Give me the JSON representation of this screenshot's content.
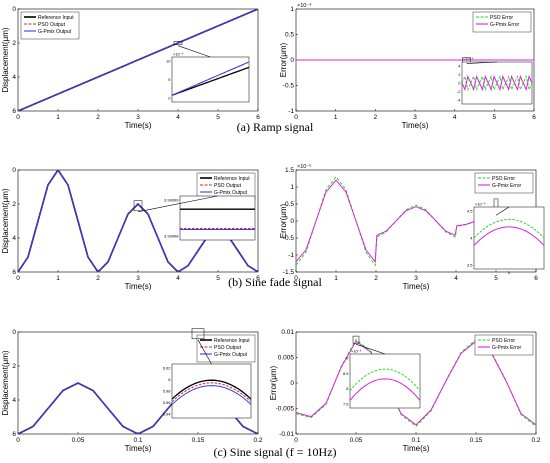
{
  "captions": {
    "a": "(a) Ramp signal",
    "b": "(b) Sine fade signal",
    "c": "(c) Sine signal (f = 10Hz)"
  },
  "colors": {
    "reference": "#000000",
    "pso": "#d62728",
    "gpmix": "#3b3bff",
    "pso_error": "#22dd22",
    "gpmix_error": "#dd22dd"
  },
  "chart_data": [
    {
      "id": "a-left",
      "type": "line",
      "xlabel": "Time(s)",
      "ylabel": "Displacement(μm)",
      "xlim": [
        0,
        6
      ],
      "ylim": [
        0,
        6
      ],
      "xticks": [
        "0",
        "1",
        "2",
        "3",
        "4",
        "5",
        "6"
      ],
      "yticks": [
        "0",
        "2",
        "4",
        "6"
      ],
      "legend": "top-left",
      "series": [
        {
          "name": "Reference Input",
          "color": "#000000",
          "style": "solid",
          "x": [
            0,
            6
          ],
          "y": [
            0,
            6
          ]
        },
        {
          "name": "PSO Output",
          "color": "#d62728",
          "style": "dashed",
          "x": [
            0,
            6
          ],
          "y": [
            0,
            6
          ]
        },
        {
          "name": "G-Pmix Output",
          "color": "#3b3bff",
          "style": "solid",
          "x": [
            0,
            6
          ],
          "y": [
            0,
            6
          ]
        }
      ],
      "inset": {
        "exponent": "×10⁻³",
        "yticks": [
          "10",
          "5",
          "0"
        ],
        "xticks": []
      }
    },
    {
      "id": "a-right",
      "type": "line",
      "xlabel": "Time(s)",
      "ylabel": "Error(μm)",
      "xlim": [
        0,
        6
      ],
      "ylim": [
        -1,
        1
      ],
      "exponent": "×10⁻⁴",
      "xticks": [
        "0",
        "1",
        "2",
        "3",
        "4",
        "5",
        "6"
      ],
      "yticks": [
        "1",
        "0.5",
        "0",
        "-0.5",
        "-1"
      ],
      "legend": "top-right",
      "series": [
        {
          "name": "PSO Error",
          "color": "#22dd22",
          "style": "dashed",
          "x": [
            0,
            6
          ],
          "y": [
            0,
            0
          ]
        },
        {
          "name": "G-Pmix Error",
          "color": "#dd22dd",
          "style": "solid",
          "x": [
            0,
            6
          ],
          "y": [
            0,
            0
          ]
        }
      ],
      "inset": {
        "exponent": "×10⁻⁶",
        "yticks": [
          "4",
          "2",
          "0",
          "-2",
          "-4"
        ],
        "xticks": []
      }
    },
    {
      "id": "b-left",
      "type": "line",
      "xlabel": "Time(s)",
      "ylabel": "Displacement(μm)",
      "xlim": [
        0,
        6
      ],
      "ylim": [
        0,
        6
      ],
      "xticks": [
        "0",
        "1",
        "2",
        "3",
        "4",
        "5",
        "6"
      ],
      "yticks": [
        "0",
        "2",
        "4",
        "6"
      ],
      "legend": "top-right",
      "series": [
        {
          "name": "Reference Input",
          "color": "#000000",
          "style": "solid",
          "x": [
            0,
            0.25,
            0.5,
            0.75,
            1,
            1.25,
            1.5,
            1.75,
            2,
            2.25,
            2.5,
            2.75,
            3,
            3.25,
            3.5,
            3.75,
            4,
            4.25,
            4.5,
            4.75,
            5,
            5.25,
            5.5,
            5.75,
            6
          ],
          "y": [
            0,
            0.88,
            3,
            5.12,
            6,
            5.12,
            3,
            0.88,
            0,
            0.59,
            2,
            3.41,
            4,
            3.41,
            2,
            0.59,
            0,
            0.37,
            1.25,
            2.13,
            2.5,
            2.13,
            1.25,
            0.37,
            0
          ]
        },
        {
          "name": "PSO Output",
          "color": "#d62728",
          "style": "dashed",
          "x": [
            0,
            0.25,
            0.5,
            0.75,
            1,
            1.25,
            1.5,
            1.75,
            2,
            2.25,
            2.5,
            2.75,
            3,
            3.25,
            3.5,
            3.75,
            4,
            4.25,
            4.5,
            4.75,
            5,
            5.25,
            5.5,
            5.75,
            6
          ],
          "y": [
            0,
            0.88,
            3,
            5.12,
            6,
            5.12,
            3,
            0.88,
            0,
            0.59,
            2,
            3.41,
            4,
            3.41,
            2,
            0.59,
            0,
            0.37,
            1.25,
            2.13,
            2.5,
            2.13,
            1.25,
            0.37,
            0
          ]
        },
        {
          "name": "G-Pmix Output",
          "color": "#3b3bff",
          "style": "solid",
          "x": [
            0,
            0.25,
            0.5,
            0.75,
            1,
            1.25,
            1.5,
            1.75,
            2,
            2.25,
            2.5,
            2.75,
            3,
            3.25,
            3.5,
            3.75,
            4,
            4.25,
            4.5,
            4.75,
            5,
            5.25,
            5.5,
            5.75,
            6
          ],
          "y": [
            0,
            0.88,
            3,
            5.12,
            6,
            5.12,
            3,
            0.88,
            0,
            0.59,
            2,
            3.41,
            4,
            3.41,
            2,
            0.59,
            0,
            0.37,
            1.25,
            2.13,
            2.5,
            2.13,
            1.25,
            0.37,
            0
          ]
        }
      ],
      "inset": {
        "exponent": "",
        "yticks": [
          "3.99999",
          "3.99998"
        ],
        "xticks": []
      }
    },
    {
      "id": "b-right",
      "type": "line",
      "xlabel": "Time(s)",
      "ylabel": "Error(μm)",
      "xlim": [
        0,
        6
      ],
      "ylim": [
        -1.5,
        1.5
      ],
      "exponent": "×10⁻⁵",
      "xticks": [
        "0",
        "1",
        "2",
        "3",
        "4",
        "5",
        "6"
      ],
      "yticks": [
        "1.5",
        "1",
        "0.5",
        "0",
        "-0.5",
        "-1",
        "-1.5"
      ],
      "legend": "top-right",
      "series": [
        {
          "name": "PSO Error",
          "color": "#22dd22",
          "style": "dashed",
          "x": [
            0,
            0.25,
            0.5,
            0.75,
            1,
            1.25,
            1.5,
            1.75,
            1.98,
            2.02,
            2.25,
            2.5,
            2.75,
            3,
            3.25,
            3.5,
            3.75,
            3.98,
            4.02,
            4.25,
            4.5,
            4.75,
            5,
            5.25,
            5.5,
            5.75,
            6
          ],
          "y": [
            -1.3,
            -0.92,
            0,
            0.92,
            1.3,
            0.92,
            0,
            -0.92,
            -1.3,
            -0.47,
            -0.33,
            0,
            0.33,
            0.47,
            0.33,
            0,
            -0.33,
            -0.47,
            -0.16,
            -0.11,
            0,
            0.11,
            0.16,
            0.11,
            0,
            -0.11,
            -0.16
          ]
        },
        {
          "name": "G-Pmix Error",
          "color": "#dd22dd",
          "style": "solid",
          "x": [
            0,
            0.25,
            0.5,
            0.75,
            1,
            1.25,
            1.5,
            1.75,
            1.98,
            2.02,
            2.25,
            2.5,
            2.75,
            3,
            3.25,
            3.5,
            3.75,
            3.98,
            4.02,
            4.25,
            4.5,
            4.75,
            5,
            5.25,
            5.5,
            5.75,
            6
          ],
          "y": [
            -1.2,
            -0.85,
            0,
            0.85,
            1.2,
            0.85,
            0,
            -0.85,
            -1.2,
            -0.42,
            -0.3,
            0,
            0.3,
            0.42,
            0.3,
            0,
            -0.3,
            -0.42,
            -0.14,
            -0.1,
            0,
            0.1,
            0.14,
            0.1,
            0,
            -0.1,
            -0.14
          ]
        }
      ],
      "inset": {
        "exponent": "×10⁻⁶",
        "yticks": [
          "4.5",
          "4",
          "3.5"
        ],
        "xticks": [
          "5"
        ]
      }
    },
    {
      "id": "c-left",
      "type": "line",
      "xlabel": "Time(s)",
      "ylabel": "Displacement(μm)",
      "xlim": [
        0,
        0.2
      ],
      "ylim": [
        0,
        6
      ],
      "xticks": [
        "0",
        "0.05",
        "0.1",
        "0.15",
        "0.2"
      ],
      "yticks": [
        "0",
        "2",
        "4",
        "6"
      ],
      "legend": "top-right",
      "series": [
        {
          "name": "Reference Input",
          "color": "#000000",
          "style": "solid",
          "x": [
            0,
            0.0125,
            0.025,
            0.0375,
            0.05,
            0.0625,
            0.075,
            0.0875,
            0.1,
            0.1125,
            0.125,
            0.1375,
            0.15,
            0.1625,
            0.175,
            0.1875,
            0.2
          ],
          "y": [
            0,
            0.44,
            1.5,
            2.56,
            3,
            2.56,
            1.5,
            0.44,
            0,
            0.44,
            1.5,
            2.56,
            3,
            2.56,
            1.5,
            0.44,
            0
          ]
        },
        {
          "name": "PSO Output",
          "color": "#d62728",
          "style": "dashed",
          "x": [
            0,
            0.0125,
            0.025,
            0.0375,
            0.05,
            0.0625,
            0.075,
            0.0875,
            0.1,
            0.1125,
            0.125,
            0.1375,
            0.15,
            0.1625,
            0.175,
            0.1875,
            0.2
          ],
          "y": [
            0,
            0.44,
            1.5,
            2.56,
            3,
            2.56,
            1.5,
            0.44,
            0,
            0.44,
            1.5,
            2.56,
            3,
            2.56,
            1.5,
            0.44,
            0
          ]
        },
        {
          "name": "G-Pmix Output",
          "color": "#3b3bff",
          "style": "solid",
          "x": [
            0,
            0.0125,
            0.025,
            0.0375,
            0.05,
            0.0625,
            0.075,
            0.0875,
            0.1,
            0.1125,
            0.125,
            0.1375,
            0.15,
            0.1625,
            0.175,
            0.1875,
            0.2
          ],
          "y": [
            0,
            0.44,
            1.5,
            2.56,
            3,
            2.56,
            1.5,
            0.44,
            0,
            0.44,
            1.5,
            2.56,
            3,
            2.56,
            1.5,
            0.44,
            0
          ]
        }
      ],
      "inset": {
        "exponent": "",
        "yticks": [
          "6.02",
          "6",
          "5.98",
          "5.96",
          "5.94"
        ],
        "xticks": []
      }
    },
    {
      "id": "c-right",
      "type": "line",
      "xlabel": "Time(s)",
      "ylabel": "Error(μm)",
      "xlim": [
        0,
        0.2
      ],
      "ylim": [
        -0.01,
        0.01
      ],
      "xticks": [
        "0",
        "0.05",
        "0.1",
        "0.15",
        "0.2"
      ],
      "yticks": [
        "0.01",
        "0.005",
        "0",
        "-0.005",
        "-0.01"
      ],
      "legend": "top-right",
      "series": [
        {
          "name": "PSO Error",
          "color": "#22dd22",
          "style": "dashed",
          "x": [
            0,
            0.0125,
            0.025,
            0.0375,
            0.05,
            0.0625,
            0.075,
            0.0875,
            0.1,
            0.1125,
            0.125,
            0.1375,
            0.15,
            0.1625,
            0.175,
            0.1875,
            0.2
          ],
          "y": [
            -0.006,
            -0.0068,
            -0.0042,
            0.0032,
            0.0085,
            0.0062,
            0.0005,
            -0.0062,
            -0.0085,
            -0.0055,
            0.0005,
            0.006,
            0.0085,
            0.0062,
            0.0005,
            -0.0062,
            -0.0085
          ]
        },
        {
          "name": "G-Pmix Error",
          "color": "#dd22dd",
          "style": "solid",
          "x": [
            0,
            0.0125,
            0.025,
            0.0375,
            0.05,
            0.0625,
            0.075,
            0.0875,
            0.1,
            0.1125,
            0.125,
            0.1375,
            0.15,
            0.1625,
            0.175,
            0.1875,
            0.2
          ],
          "y": [
            -0.0058,
            -0.0066,
            -0.004,
            0.003,
            0.0082,
            0.006,
            0.0004,
            -0.006,
            -0.0082,
            -0.0053,
            0.0004,
            0.0058,
            0.0082,
            0.006,
            0.0004,
            -0.006,
            -0.0082
          ]
        }
      ],
      "inset": {
        "exponent": "×10⁻³",
        "yticks": [
          "9",
          "8.5",
          "8",
          "7.5"
        ],
        "xticks": []
      }
    }
  ]
}
